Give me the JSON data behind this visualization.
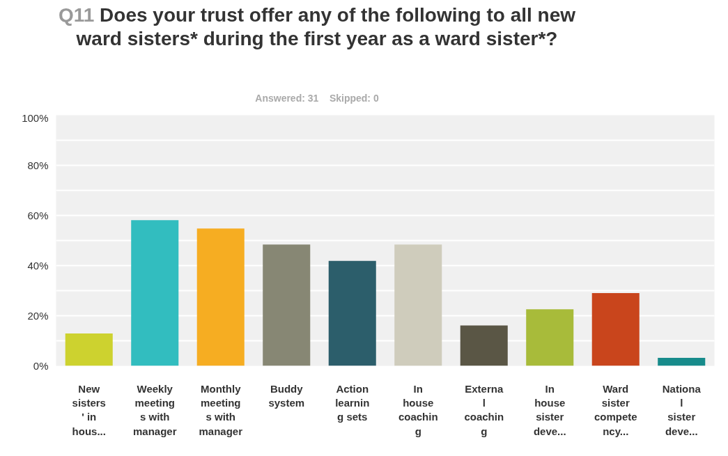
{
  "chart_data": {
    "type": "bar",
    "title": "Q11 Does your trust offer any of the following to all new ward sisters* during the first year as a ward sister*?",
    "subtitle": "Answered: 31    Skipped: 0",
    "categories": [
      "New sisters' in hous...",
      "Weekly meetings with manager",
      "Monthly meetings with manager",
      "Buddy system",
      "Action learning sets",
      "In house coaching",
      "External coaching",
      "In house sister deve...",
      "Ward sister competency...",
      "National sister deve..."
    ],
    "values": [
      12.9,
      58.1,
      54.8,
      48.4,
      41.9,
      48.4,
      16.1,
      22.6,
      29.0,
      3.2
    ],
    "colors": [
      "#cdd22f",
      "#32bdbf",
      "#f6ad22",
      "#878774",
      "#2c5e6b",
      "#cfccbc",
      "#5a5645",
      "#a8bb3a",
      "#c9451c",
      "#178b8b"
    ],
    "ylim": [
      0,
      100
    ],
    "yticks": [
      {
        "value": 0,
        "label": "0%"
      },
      {
        "value": 10,
        "label": null
      },
      {
        "value": 20,
        "label": "20%"
      },
      {
        "value": 30,
        "label": null
      },
      {
        "value": 40,
        "label": "40%"
      },
      {
        "value": 50,
        "label": null
      },
      {
        "value": 60,
        "label": "60%"
      },
      {
        "value": 70,
        "label": null
      },
      {
        "value": 80,
        "label": "80%"
      },
      {
        "value": 90,
        "label": null
      },
      {
        "value": 100,
        "label": "100%"
      }
    ],
    "grid": "y"
  }
}
